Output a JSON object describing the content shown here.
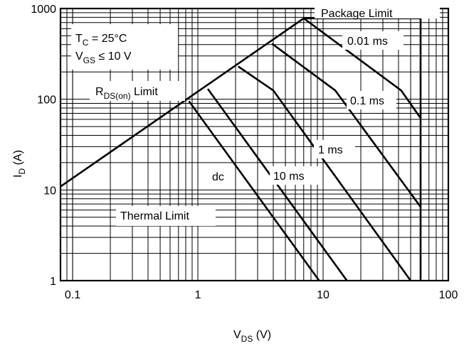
{
  "chart_data": {
    "type": "line",
    "title": "",
    "x_scale": "log",
    "y_scale": "log",
    "xlim": [
      0.08,
      100
    ],
    "ylim": [
      1,
      1000
    ],
    "grid": true,
    "x_ticks": [
      "0.1",
      "1",
      "10",
      "100"
    ],
    "y_ticks": [
      "1",
      "10",
      "100",
      "1000"
    ],
    "xlabel": {
      "main": "V",
      "sub": "DS",
      "unit": " (V)"
    },
    "ylabel": {
      "main": "I",
      "sub": "D",
      "unit": " (A)"
    },
    "conditions": {
      "tc": {
        "main": "T",
        "sub": "C",
        "text": " = 25°C"
      },
      "vgs": {
        "main": "V",
        "sub": "GS",
        "text": " ≤ 10 V"
      }
    },
    "limit_lines": [
      {
        "name": "R_DS(on) Limit",
        "points": [
          [
            0.08,
            10.9
          ],
          [
            7.0,
            780
          ]
        ]
      },
      {
        "name": "Package Limit",
        "points": [
          [
            7.0,
            780
          ],
          [
            60,
            780
          ]
        ]
      },
      {
        "name": "Thermal Limit",
        "points": [
          [
            60,
            780
          ],
          [
            60,
            1
          ]
        ]
      }
    ],
    "series": [
      {
        "name": "0.01 ms",
        "points": [
          [
            7.0,
            780
          ],
          [
            42,
            125
          ],
          [
            60,
            62
          ]
        ]
      },
      {
        "name": "0.1 ms",
        "points": [
          [
            3.9,
            410
          ],
          [
            12.5,
            125
          ],
          [
            60,
            6.5
          ]
        ]
      },
      {
        "name": "1 ms",
        "points": [
          [
            2.1,
            230
          ],
          [
            4.0,
            125
          ],
          [
            50,
            1
          ]
        ]
      },
      {
        "name": "10 ms",
        "points": [
          [
            1.2,
            130
          ],
          [
            15.5,
            1
          ]
        ]
      },
      {
        "name": "dc",
        "points": [
          [
            0.85,
            95
          ],
          [
            9.3,
            1
          ]
        ]
      }
    ],
    "annotations": {
      "package_limit": "Package Limit",
      "rdson": {
        "main": "R",
        "sub": "DS(on)",
        "text": " Limit"
      },
      "thermal_limit": "Thermal Limit",
      "t001": "0.01 ms",
      "t01": "0.1 ms",
      "t1": "1 ms",
      "t10": "10 ms",
      "dc": "dc"
    }
  }
}
